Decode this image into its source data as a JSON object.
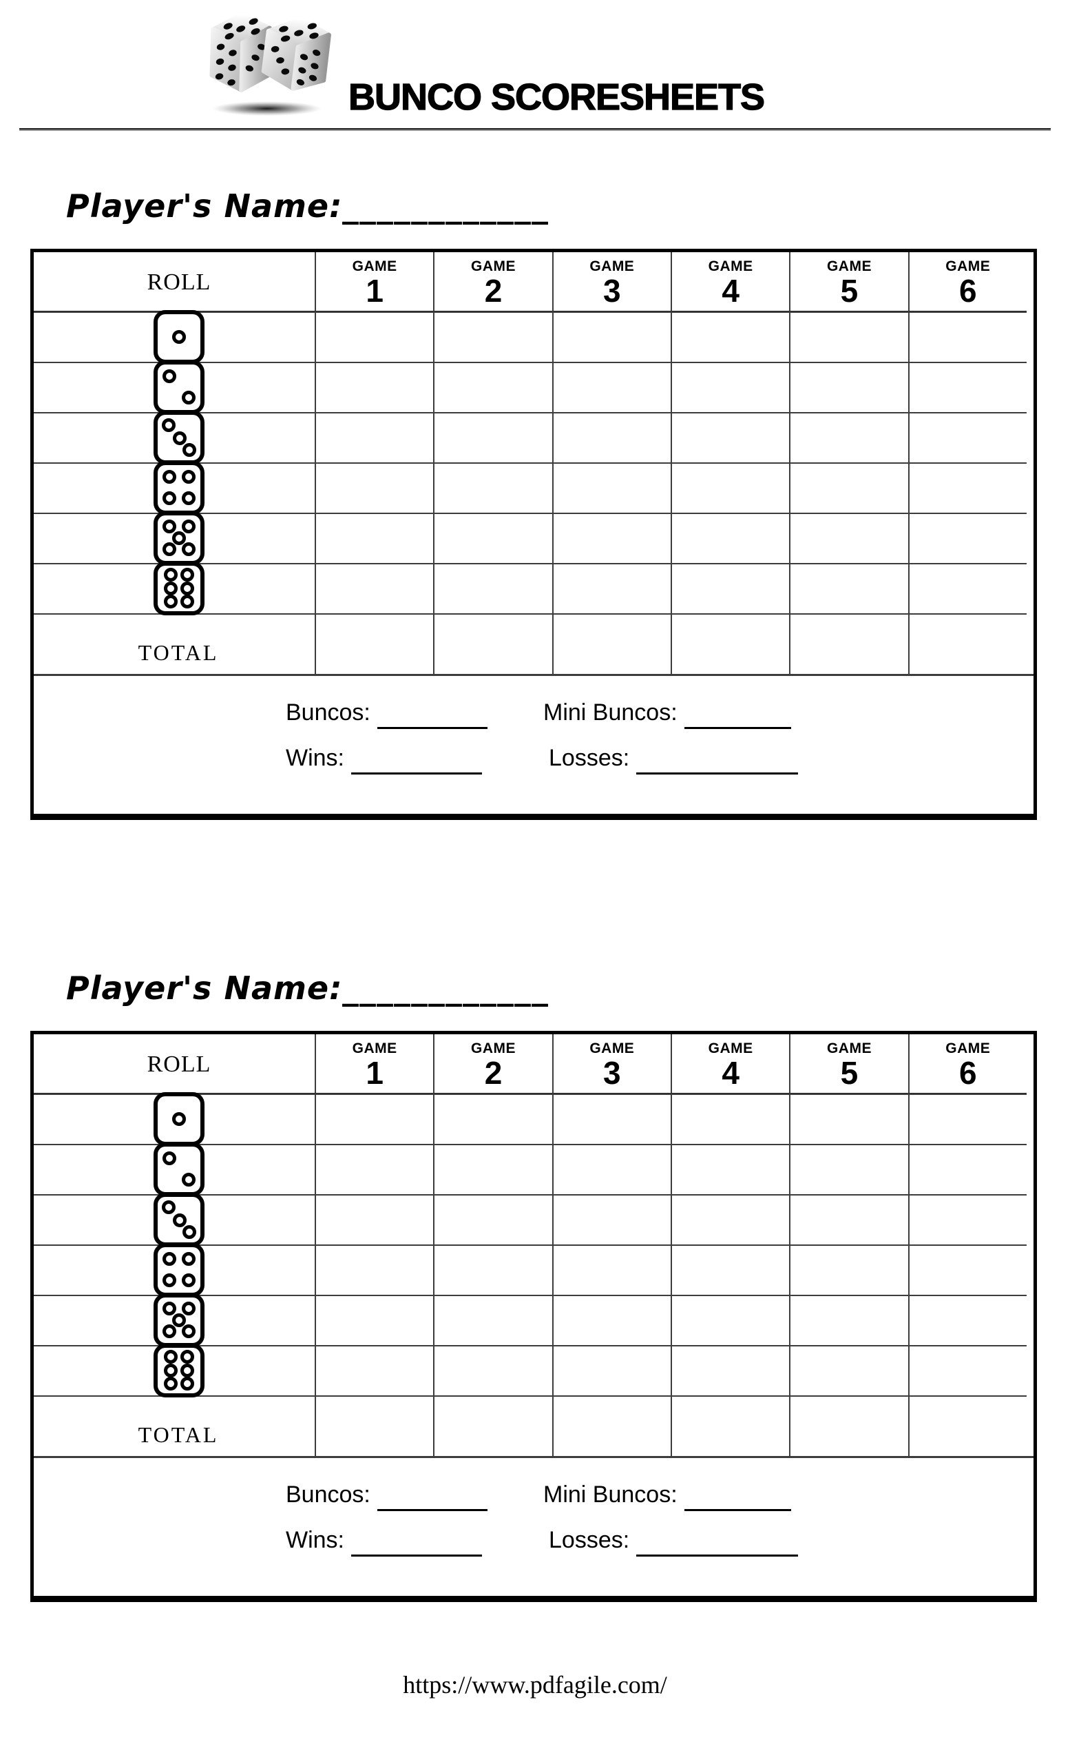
{
  "page": {
    "title": "BUNCO SCORESHEETS",
    "footer_url": "https://www.pdfagile.com/"
  },
  "sheet": {
    "player_name_label": "Player's Name:",
    "player_name_blank": "____________",
    "roll_label": "ROLL",
    "game_label": "GAME",
    "game_numbers": [
      "1",
      "2",
      "3",
      "4",
      "5",
      "6"
    ],
    "roll_dice_pips": [
      1,
      2,
      3,
      4,
      5,
      6
    ],
    "total_label": "TOTAL",
    "stats": {
      "buncos_label": "Buncos:",
      "mini_buncos_label": "Mini Buncos:",
      "wins_label": "Wins:",
      "losses_label": "Losses:"
    }
  },
  "colors": {
    "ink": "#000000",
    "grid_line": "#3d3d3d",
    "paper": "#ffffff"
  }
}
